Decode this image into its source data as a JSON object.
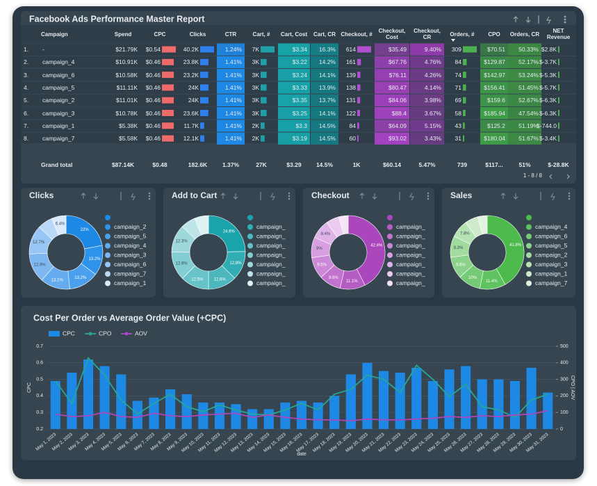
{
  "table": {
    "title": "Facebook Ads Performance Master Report",
    "columns": [
      "Campaign",
      "Spend",
      "CPC",
      "Clicks",
      "CTR",
      "Cart, #",
      "Cart, Cost",
      "Cart, CR",
      "Checkout, #",
      "Checkout, Cost",
      "Checkout, CR",
      "Orders, #",
      "CPO",
      "Orders, CR",
      "NET Revenue"
    ],
    "row_numbers": [
      "1.",
      "2.",
      "3.",
      "4.",
      "5.",
      "6.",
      "7.",
      "8."
    ],
    "rows": [
      [
        "-",
        "$21.79K",
        "$0.54",
        "40.2K",
        "1.24%",
        "7K",
        "$3.34",
        "16.3%",
        "614",
        "$35.49",
        "9.40%",
        "309",
        "$70.51",
        "50.33%",
        "$2.8K"
      ],
      [
        "campaign_4",
        "$10.91K",
        "$0.46",
        "23.8K",
        "1.41%",
        "3K",
        "$3.22",
        "14.2%",
        "161",
        "$67.76",
        "4.76%",
        "84",
        "$129.87",
        "52.17%",
        "$-3.7K"
      ],
      [
        "campaign_6",
        "$10.58K",
        "$0.46",
        "23.2K",
        "1.41%",
        "3K",
        "$3.24",
        "14.1%",
        "139",
        "$76.11",
        "4.26%",
        "74",
        "$142.97",
        "53.24%",
        "$-5.3K"
      ],
      [
        "campaign_5",
        "$11.11K",
        "$0.46",
        "24K",
        "1.41%",
        "3K",
        "$3.33",
        "13.9%",
        "138",
        "$80.47",
        "4.14%",
        "71",
        "$156.41",
        "51.45%",
        "$-5.7K"
      ],
      [
        "campaign_2",
        "$11.01K",
        "$0.46",
        "24K",
        "1.41%",
        "3K",
        "$3.35",
        "13.7%",
        "131",
        "$84.06",
        "3.98%",
        "69",
        "$159.6",
        "52.67%",
        "$-6.3K"
      ],
      [
        "campaign_3",
        "$10.78K",
        "$0.46",
        "23.6K",
        "1.41%",
        "3K",
        "$3.25",
        "14.1%",
        "122",
        "$88.4",
        "3.67%",
        "58",
        "$185.94",
        "47.54%",
        "$-6.3K"
      ],
      [
        "campaign_1",
        "$5.38K",
        "$0.46",
        "11.7K",
        "1.41%",
        "2K",
        "$3.3",
        "14.5%",
        "84",
        "$64.09",
        "5.15%",
        "43",
        "$125.2",
        "51.19%",
        "$-744.0"
      ],
      [
        "campaign_7",
        "$5.58K",
        "$0.46",
        "12.1K",
        "1.41%",
        "2K",
        "$3.19",
        "14.5%",
        "60",
        "$93.02",
        "3.43%",
        "31",
        "$180.04",
        "51.67%",
        "$-3.4K"
      ]
    ],
    "total": [
      "Grand total",
      "$87.14K",
      "$0.48",
      "182.6K",
      "1.37%",
      "27K",
      "$3.29",
      "14.5%",
      "1K",
      "$60.14",
      "5.47%",
      "739",
      "$117...",
      "51%",
      "$-28.8K"
    ],
    "pagination": "1 - 8 / 8"
  },
  "chart_data": [
    {
      "type": "donut",
      "title": "Clicks",
      "categories": [
        null,
        "campaign_2",
        "campaign_5",
        "campaign_4",
        "campaign_3",
        "campaign_6",
        "campaign_7",
        "campaign_1"
      ],
      "values": [
        22,
        13.2,
        13.2,
        13.1,
        12.9,
        12.7,
        6.6,
        6.4
      ],
      "value_labels": [
        "22%",
        "13.2%",
        "13.2%",
        "13.1%",
        "12.9%",
        "12.7%",
        null,
        "6.4%"
      ],
      "colors": [
        "#1e88e5",
        "#2e93ea",
        "#4aa0ec",
        "#64acef",
        "#7db8f1",
        "#97c5f4",
        "#b9d8f7",
        "#dbeafb"
      ]
    },
    {
      "type": "donut",
      "title": "Add to Cart",
      "categories": [
        null,
        "campaign_",
        "campaign_",
        "campaign_",
        "campaign_",
        "campaign_",
        "campaign_",
        "campaign_"
      ],
      "values": [
        24.6,
        12.8,
        12.6,
        12.5,
        12.6,
        12.3,
        6.4,
        6.2
      ],
      "value_labels": [
        "24.6%",
        "12.8%",
        "12.6%",
        "12.5%",
        "12.6%",
        "12.3%",
        null,
        null
      ],
      "colors": [
        "#1aa3ab",
        "#31adb4",
        "#4cb8be",
        "#67c3c8",
        "#82ced2",
        "#9dd9dc",
        "#bde5e7",
        "#dcf2f3"
      ]
    },
    {
      "type": "donut",
      "title": "Checkout",
      "categories": [
        null,
        "campaign_",
        "campaign_",
        "campaign_",
        "campaign_",
        "campaign_",
        "campaign_",
        "campaign_"
      ],
      "values": [
        42.4,
        11.1,
        9.6,
        9.5,
        9,
        8.4,
        5.8,
        4.1
      ],
      "value_labels": [
        "42.4%",
        "11.1%",
        "9.6%",
        "9.5%",
        "9%",
        "8.4%",
        null,
        null
      ],
      "colors": [
        "#ab47bc",
        "#b65dc5",
        "#c173ce",
        "#cc89d7",
        "#d79fe0",
        "#e0b3e8",
        "#ebcbf0",
        "#f5e3f7"
      ]
    },
    {
      "type": "donut",
      "title": "Sales",
      "categories": [
        null,
        "campaign_4",
        "campaign_6",
        "campaign_5",
        "campaign_2",
        "campaign_3",
        "campaign_1",
        "campaign_7"
      ],
      "values": [
        41.8,
        11.4,
        10,
        9.6,
        9.3,
        7.8,
        5.8,
        4.2
      ],
      "value_labels": [
        "41.8%",
        "11.4%",
        "10%",
        "9.6%",
        "9.3%",
        "7.8%",
        null,
        null
      ],
      "colors": [
        "#4cbb4c",
        "#5fc35f",
        "#75cb75",
        "#8bd38b",
        "#a1db9f",
        "#b5e3b3",
        "#cdebcb",
        "#e3f3e2"
      ]
    },
    {
      "type": "combo",
      "title": "Cost Per Order vs Average Order Value (+CPC)",
      "x": [
        "May 1, 2023",
        "May 2, 2023",
        "May 3, 2023",
        "May 4, 2023",
        "May 5, 2023",
        "May 6, 2023",
        "May 7, 2023",
        "May 8, 2023",
        "May 9, 2023",
        "May 10, 2023",
        "May 11, 2023",
        "May 12, 2023",
        "May 13, 2023",
        "May 14, 2023",
        "May 15, 2023",
        "May 16, 2023",
        "May 17, 2023",
        "May 18, 2023",
        "May 19, 2023",
        "May 20, 2023",
        "May 21, 2023",
        "May 22, 2023",
        "May 23, 2023",
        "May 24, 2023",
        "May 25, 2023",
        "May 26, 2023",
        "May 27, 2023",
        "May 28, 2023",
        "May 29, 2023",
        "May 30, 2023",
        "May 31, 2023"
      ],
      "series": [
        {
          "name": "CPC",
          "type": "bar",
          "color": "#1e88e5",
          "values": [
            0.49,
            0.54,
            0.62,
            0.58,
            0.53,
            0.37,
            0.39,
            0.44,
            0.41,
            0.36,
            0.36,
            0.35,
            0.32,
            0.32,
            0.36,
            0.37,
            0.36,
            0.4,
            0.53,
            0.6,
            0.55,
            0.54,
            0.57,
            0.49,
            0.56,
            0.58,
            0.5,
            0.5,
            0.49,
            0.57,
            0.42
          ]
        },
        {
          "name": "CPO",
          "type": "line",
          "axis": "y2",
          "color": "#26a69a",
          "values": [
            290,
            155,
            430,
            325,
            175,
            90,
            155,
            210,
            135,
            105,
            145,
            115,
            90,
            85,
            115,
            155,
            115,
            210,
            240,
            325,
            300,
            220,
            385,
            300,
            195,
            270,
            135,
            115,
            70,
            175,
            210
          ]
        },
        {
          "name": "AOV",
          "type": "line",
          "axis": "y2",
          "color": "#ab47bc",
          "values": [
            90,
            75,
            80,
            100,
            75,
            70,
            95,
            80,
            75,
            85,
            90,
            95,
            70,
            85,
            70,
            60,
            55,
            55,
            50,
            60,
            55,
            55,
            60,
            65,
            75,
            70,
            80,
            75,
            85,
            90,
            110
          ]
        }
      ],
      "ylim": [
        0.2,
        0.7
      ],
      "yticks": [
        0.2,
        0.3,
        0.4,
        0.5,
        0.6,
        0.7
      ],
      "y2lim": [
        0,
        500
      ],
      "y2ticks": [
        0,
        100,
        200,
        300,
        400,
        500
      ],
      "ylabel": "CPC",
      "y2label": "CPO | AOV",
      "xlabel": "date",
      "grid": true,
      "legend": "top-left"
    }
  ]
}
